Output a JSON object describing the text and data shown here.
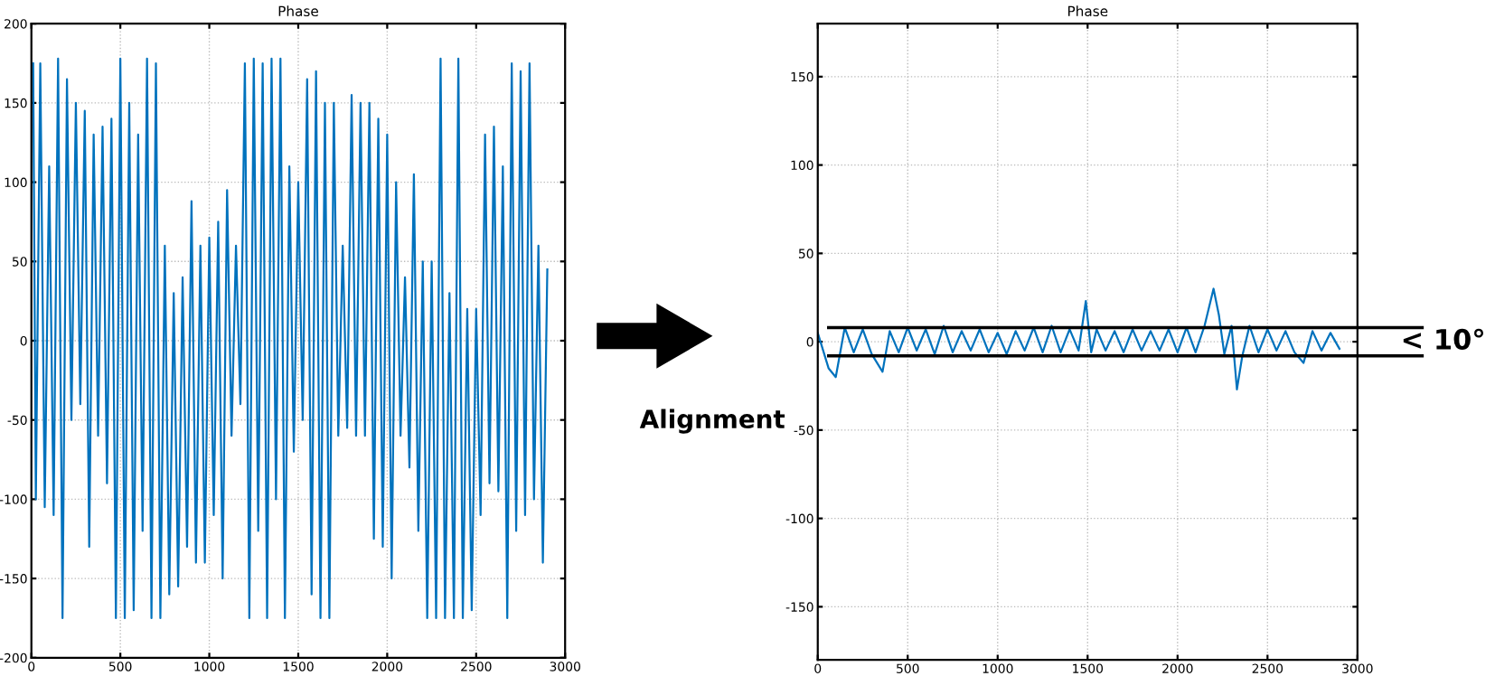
{
  "chart_data": [
    {
      "type": "line",
      "title": "Phase",
      "xlim": [
        0,
        3000
      ],
      "xticks": [
        0,
        500,
        1000,
        1500,
        2000,
        2500,
        3000
      ],
      "ylim": [
        -200,
        200
      ],
      "yticks": [
        -200,
        -150,
        -100,
        -50,
        0,
        50,
        100,
        150,
        200
      ],
      "grid": true,
      "line_style": "solid",
      "series": [
        {
          "color": "#0072bd",
          "x": [
            10,
            25,
            50,
            75,
            100,
            125,
            150,
            175,
            200,
            225,
            250,
            275,
            300,
            325,
            350,
            375,
            400,
            425,
            450,
            475,
            500,
            525,
            550,
            575,
            600,
            625,
            650,
            675,
            700,
            725,
            750,
            775,
            800,
            825,
            850,
            875,
            900,
            925,
            950,
            975,
            1000,
            1025,
            1050,
            1075,
            1100,
            1125,
            1150,
            1175,
            1200,
            1225,
            1250,
            1275,
            1300,
            1325,
            1350,
            1375,
            1400,
            1425,
            1450,
            1475,
            1500,
            1525,
            1550,
            1575,
            1600,
            1625,
            1650,
            1675,
            1700,
            1725,
            1750,
            1775,
            1800,
            1825,
            1850,
            1875,
            1900,
            1925,
            1950,
            1975,
            2000,
            2025,
            2050,
            2075,
            2100,
            2125,
            2150,
            2175,
            2200,
            2225,
            2250,
            2275,
            2300,
            2325,
            2350,
            2375,
            2400,
            2425,
            2450,
            2475,
            2500,
            2525,
            2550,
            2575,
            2600,
            2625,
            2650,
            2675,
            2700,
            2725,
            2750,
            2775,
            2800,
            2825,
            2850,
            2875,
            2900
          ],
          "values": [
            175,
            -100,
            175,
            -105,
            110,
            -110,
            178,
            -175,
            165,
            -50,
            150,
            -40,
            145,
            -130,
            130,
            -60,
            135,
            -90,
            140,
            -175,
            178,
            -175,
            150,
            -170,
            130,
            -120,
            178,
            -175,
            175,
            -175,
            60,
            -160,
            30,
            -155,
            40,
            -130,
            88,
            -140,
            60,
            -140,
            65,
            -110,
            75,
            -150,
            95,
            -60,
            60,
            -40,
            175,
            -175,
            178,
            -120,
            175,
            -175,
            178,
            -100,
            178,
            -175,
            110,
            -70,
            100,
            -50,
            165,
            -160,
            170,
            -175,
            150,
            -175,
            150,
            -60,
            60,
            -55,
            155,
            -60,
            150,
            -60,
            150,
            -125,
            140,
            -130,
            130,
            -150,
            100,
            -60,
            40,
            -80,
            105,
            -120,
            50,
            -175,
            50,
            -175,
            178,
            -175,
            30,
            -175,
            178,
            -175,
            20,
            -170,
            20,
            -110,
            130,
            -90,
            135,
            -95,
            110,
            -175,
            175,
            -120,
            170,
            -110,
            175,
            -100,
            60,
            -140,
            45
          ]
        }
      ]
    },
    {
      "type": "line",
      "title": "Phase",
      "xlim": [
        0,
        3000
      ],
      "xticks": [
        0,
        500,
        1000,
        1500,
        2000,
        2500,
        3000
      ],
      "ylim": [
        -180,
        180
      ],
      "yticks": [
        -150,
        -100,
        -50,
        0,
        50,
        100,
        150
      ],
      "grid": true,
      "line_style": "solid",
      "series": [
        {
          "color": "#0072bd",
          "x": [
            0,
            30,
            60,
            100,
            150,
            200,
            250,
            300,
            360,
            400,
            450,
            500,
            550,
            600,
            650,
            700,
            750,
            800,
            850,
            900,
            950,
            1000,
            1050,
            1100,
            1150,
            1200,
            1250,
            1300,
            1350,
            1400,
            1450,
            1490,
            1520,
            1550,
            1600,
            1650,
            1700,
            1750,
            1800,
            1850,
            1900,
            1950,
            2000,
            2050,
            2100,
            2150,
            2200,
            2230,
            2260,
            2300,
            2330,
            2360,
            2400,
            2450,
            2500,
            2550,
            2600,
            2650,
            2700,
            2750,
            2800,
            2850,
            2900
          ],
          "values": [
            5,
            -5,
            -15,
            -20,
            8,
            -6,
            7,
            -7,
            -17,
            6,
            -6,
            8,
            -5,
            7,
            -7,
            9,
            -6,
            6,
            -5,
            7,
            -6,
            5,
            -7,
            6,
            -5,
            8,
            -6,
            9,
            -6,
            7,
            -5,
            23,
            -6,
            7,
            -5,
            6,
            -6,
            7,
            -5,
            6,
            -5,
            7,
            -6,
            8,
            -6,
            9,
            30,
            15,
            -7,
            9,
            -27,
            -8,
            9,
            -6,
            7,
            -5,
            6,
            -6,
            -12,
            6,
            -5,
            5,
            -4
          ]
        }
      ],
      "ref_lines": [
        {
          "axis": "y",
          "value": 8,
          "color": "#000000"
        },
        {
          "axis": "y",
          "value": -8,
          "color": "#000000"
        }
      ],
      "annotations": [
        "< 10°",
        "Alignment"
      ]
    }
  ]
}
